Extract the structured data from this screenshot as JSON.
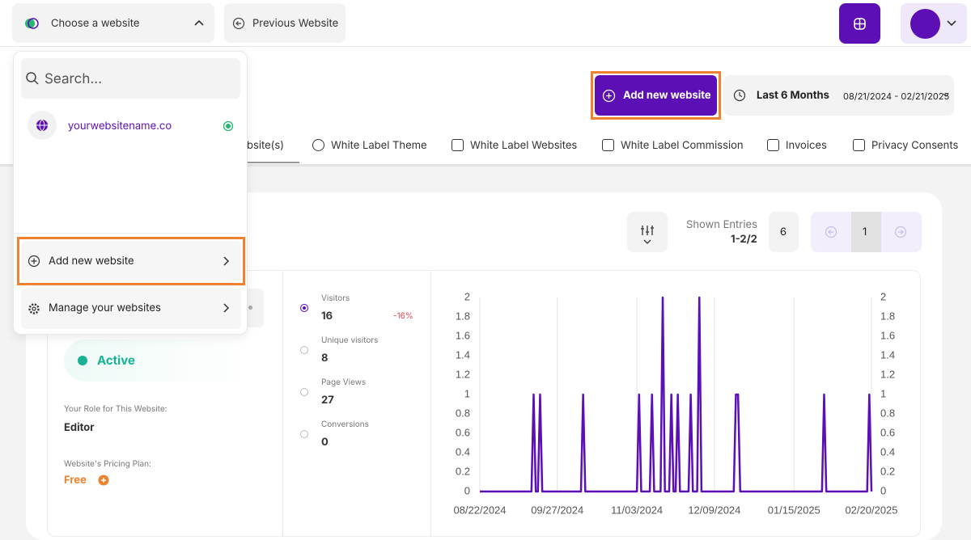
{
  "topbar": {
    "site_selector": "Choose a website",
    "previous": "Previous Website"
  },
  "dropdown": {
    "search_placeholder": "Search...",
    "site": "yourwebsitename.co",
    "add": "Add new website",
    "manage": "Manage your websites"
  },
  "header": {
    "add_button": "Add new website",
    "range": "Last 6 Months",
    "dates": "08/21/2024 - 02/21/2025"
  },
  "tabs": [
    "bsite(s)",
    "White Label Theme",
    "White Label Websites",
    "White Label Commission",
    "Invoices",
    "Privacy Consents"
  ],
  "panel": {
    "shown_entries_label": "Shown Entries",
    "shown_entries": "1-2/2",
    "per_page": 6,
    "page": 1,
    "status": "Active",
    "role_label": "Your Role for This Website:",
    "role": "Editor",
    "plan_label": "Website's Pricing Plan:",
    "plan": "Free"
  },
  "metrics": [
    {
      "label": "Visitors",
      "value": 16,
      "change": "-16%"
    },
    {
      "label": "Unique visitors",
      "value": 8
    },
    {
      "label": "Page Views",
      "value": 27
    },
    {
      "label": "Conversions",
      "value": 0
    }
  ],
  "chart_data": {
    "type": "line",
    "color": "#5b0fb5",
    "grid": true,
    "categories": [
      "08/22/2024",
      null,
      null,
      null,
      null,
      null,
      null,
      null,
      null,
      null,
      null,
      null,
      null,
      null,
      null,
      null,
      null,
      null,
      null,
      null,
      null,
      null,
      null,
      null,
      null,
      null,
      null,
      null,
      null,
      null,
      null,
      null,
      null,
      null,
      null,
      null,
      "09/27/2024",
      null,
      null,
      null,
      null,
      null,
      null,
      null,
      null,
      null,
      null,
      null,
      null,
      null,
      null,
      null,
      null,
      null,
      null,
      null,
      null,
      null,
      null,
      null,
      null,
      null,
      null,
      null,
      null,
      null,
      null,
      null,
      null,
      null,
      null,
      null,
      null,
      "11/03/2024",
      null,
      null,
      null,
      null,
      null,
      null,
      null,
      null,
      null,
      null,
      null,
      null,
      null,
      null,
      null,
      null,
      null,
      null,
      null,
      null,
      null,
      null,
      null,
      null,
      null,
      null,
      null,
      null,
      null,
      null,
      null,
      null,
      null,
      null,
      null,
      "12/09/2024",
      null,
      null,
      null,
      null,
      null,
      null,
      null,
      null,
      null,
      null,
      null,
      null,
      null,
      null,
      null,
      null,
      null,
      null,
      null,
      null,
      null,
      null,
      null,
      null,
      null,
      null,
      null,
      null,
      null,
      null,
      null,
      null,
      null,
      null,
      null,
      null,
      "01/15/2025",
      null,
      null,
      null,
      null,
      null,
      null,
      null,
      null,
      null,
      null,
      null,
      null,
      null,
      null,
      null,
      null,
      null,
      null,
      null,
      null,
      null,
      null,
      null,
      null,
      null,
      null,
      null,
      null,
      null,
      null,
      null,
      null,
      null,
      null,
      null,
      "02/20/2025"
    ],
    "values": [
      0,
      0,
      0,
      0,
      0,
      0,
      0,
      0,
      0,
      0,
      0,
      0,
      0,
      0,
      0,
      0,
      0,
      0,
      0,
      0,
      0,
      0,
      0,
      0,
      0,
      1,
      0,
      0,
      1,
      0,
      0,
      0,
      0,
      0,
      0,
      0,
      0,
      0,
      0,
      0,
      0,
      0,
      0,
      0,
      0,
      0,
      0,
      0,
      1,
      0,
      0,
      0,
      0,
      0,
      0,
      0,
      0,
      0,
      0,
      0,
      0,
      0,
      0,
      0,
      0,
      0,
      0,
      0,
      0,
      0,
      0,
      0,
      0,
      0,
      1,
      0,
      0,
      0,
      0,
      0,
      1,
      0,
      0,
      0,
      0,
      2,
      0,
      0,
      0,
      1,
      0,
      0,
      1,
      0,
      0,
      0,
      0,
      0,
      1,
      0,
      0,
      0,
      2,
      0,
      0,
      0,
      0,
      0,
      0,
      0,
      0,
      0,
      0,
      0,
      0,
      0,
      0,
      0,
      0,
      1,
      1,
      0,
      0,
      0,
      0,
      0,
      0,
      0,
      0,
      0,
      0,
      0,
      0,
      0,
      0,
      0,
      0,
      0,
      0,
      0,
      0,
      0,
      0,
      0,
      0,
      0,
      0,
      0,
      0,
      0,
      0,
      0,
      0,
      0,
      0,
      0,
      0,
      0,
      0,
      0,
      1,
      0,
      0,
      0,
      0,
      0,
      0,
      0,
      0,
      0,
      0,
      0,
      0,
      0,
      0,
      0,
      0,
      0,
      0,
      0,
      0,
      1,
      0
    ],
    "ylim": [
      0,
      2
    ],
    "yticks": [
      0,
      0.2,
      0.4,
      0.6,
      0.8,
      1,
      1.2,
      1.4,
      1.6,
      1.8,
      2
    ],
    "y2lim": [
      0,
      2
    ],
    "y2ticks": [
      0,
      0.2,
      0.4,
      0.6,
      0.8,
      1,
      1.2,
      1.4,
      1.6,
      1.8,
      2
    ]
  }
}
